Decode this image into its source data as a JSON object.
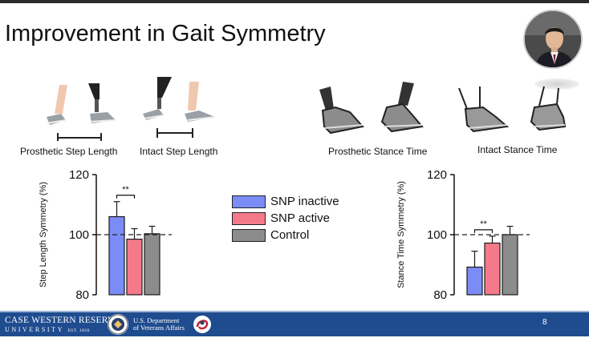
{
  "slide": {
    "title": "Improvement in Gait Symmetry",
    "page_number": "8"
  },
  "illustrations": {
    "prosthetic_step_length": "Prosthetic Step Length",
    "intact_step_length": "Intact Step Length",
    "prosthetic_stance_time": "Prosthetic Stance Time",
    "intact_stance_time": "Intact Stance Time"
  },
  "legend": [
    {
      "label": "SNP inactive",
      "color": "#7b8cf7"
    },
    {
      "label": "SNP active",
      "color": "#f47a8a"
    },
    {
      "label": "Control",
      "color": "#8c8c8c"
    }
  ],
  "chart_data": [
    {
      "type": "bar",
      "ylabel": "Step Length Symmetry (%)",
      "ylim": [
        80,
        120
      ],
      "yticks": [
        "120",
        "100",
        "80"
      ],
      "reference_line": 100,
      "significance": "**",
      "series": [
        {
          "name": "SNP inactive",
          "value": 106,
          "error": 5
        },
        {
          "name": "SNP active",
          "value": 98.5,
          "error": 3.5
        },
        {
          "name": "Control",
          "value": 100.3,
          "error": 2.5
        }
      ]
    },
    {
      "type": "bar",
      "ylabel": "Stance Time Symmetry (%)",
      "ylim": [
        80,
        120
      ],
      "yticks": [
        "120",
        "100",
        "80"
      ],
      "reference_line": 100,
      "significance": "**",
      "series": [
        {
          "name": "SNP inactive",
          "value": 89.2,
          "error": 5.3
        },
        {
          "name": "SNP active",
          "value": 97.2,
          "error": 2.3
        },
        {
          "name": "Control",
          "value": 100,
          "error": 2.8
        }
      ]
    }
  ],
  "footer": {
    "university_top": "CASE WESTERN RESERVE",
    "university_bottom": "UNIVERSITY",
    "university_est": "EST. 1826",
    "va_line1": "U.S. Department",
    "va_line2": "of Veterans Affairs"
  }
}
